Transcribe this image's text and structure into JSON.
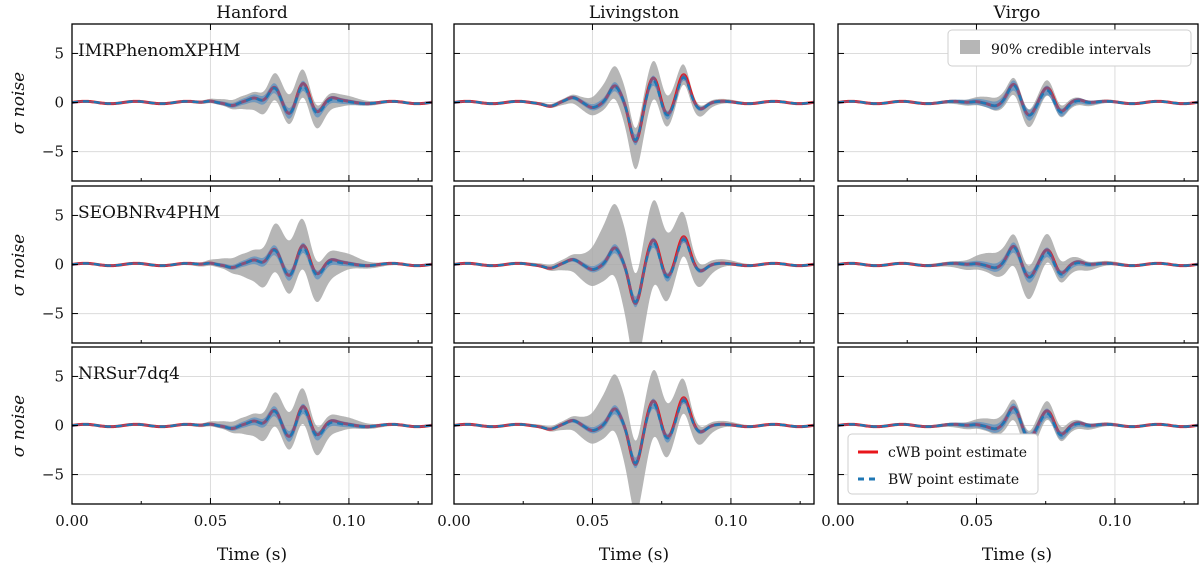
{
  "chart_data": {
    "type": "line",
    "columns": [
      "Hanford",
      "Livingston",
      "Virgo"
    ],
    "rows": [
      "IMRPhenomXPHM",
      "SEOBNRv4PHM",
      "NRSur7dq4"
    ],
    "ylabel": "σ noise",
    "xlabel": "Time (s)",
    "xlim": [
      0,
      0.13
    ],
    "ylim": [
      -8,
      8
    ],
    "xticks": [
      0.0,
      0.05,
      0.1
    ],
    "xtick_labels": [
      "0.00",
      "0.05",
      "0.10"
    ],
    "yticks": [
      -5,
      0,
      5
    ],
    "ytick_labels": [
      "−5",
      "0",
      "5"
    ],
    "grid": true,
    "legend_band": {
      "label": "90% credible intervals",
      "position": "top-right of Virgo / IMRPhenomXPHM panel"
    },
    "legend_lines": [
      {
        "label": "cWB point estimate",
        "color": "#e8161b",
        "style": "solid"
      },
      {
        "label": "BW point estimate",
        "color": "#1f77b4",
        "style": "dashed"
      }
    ],
    "legend_lines_position": "lower-left of Virgo / NRSur7dq4 panel",
    "series": {
      "Hanford": {
        "wave": {
          "center": 0.079,
          "peaks": [
            {
              "t": 0.05,
              "a": 0.25
            },
            {
              "t": 0.058,
              "a": -0.4
            },
            {
              "t": 0.066,
              "a": 0.5
            },
            {
              "t": 0.073,
              "a": 1.6
            },
            {
              "t": 0.0785,
              "a": -1.4
            },
            {
              "t": 0.0835,
              "a": 1.9
            },
            {
              "t": 0.0885,
              "a": -1.1
            },
            {
              "t": 0.0935,
              "a": 0.3
            }
          ]
        },
        "band_width": [
          1.4,
          2.6,
          1.8
        ]
      },
      "Livingston": {
        "wave": {
          "center": 0.067,
          "peaks": [
            {
              "t": 0.035,
              "a": -0.3
            },
            {
              "t": 0.043,
              "a": 0.4
            },
            {
              "t": 0.05,
              "a": -0.4
            },
            {
              "t": 0.058,
              "a": 1.6
            },
            {
              "t": 0.0655,
              "a": -4.0
            },
            {
              "t": 0.072,
              "a": 2.5
            },
            {
              "t": 0.077,
              "a": -1.6
            },
            {
              "t": 0.083,
              "a": 2.7
            },
            {
              "t": 0.089,
              "a": -0.6
            }
          ]
        },
        "band_width": [
          2.0,
          4.6,
          3.6
        ]
      },
      "Virgo": {
        "wave": {
          "center": 0.068,
          "peaks": [
            {
              "t": 0.05,
              "a": 0.2
            },
            {
              "t": 0.057,
              "a": -0.4
            },
            {
              "t": 0.0635,
              "a": 1.8
            },
            {
              "t": 0.069,
              "a": -1.3
            },
            {
              "t": 0.0755,
              "a": 1.3
            },
            {
              "t": 0.0805,
              "a": -1.2
            },
            {
              "t": 0.087,
              "a": 0.3
            }
          ]
        },
        "band_width": [
          0.8,
          1.6,
          1.0
        ]
      }
    }
  }
}
